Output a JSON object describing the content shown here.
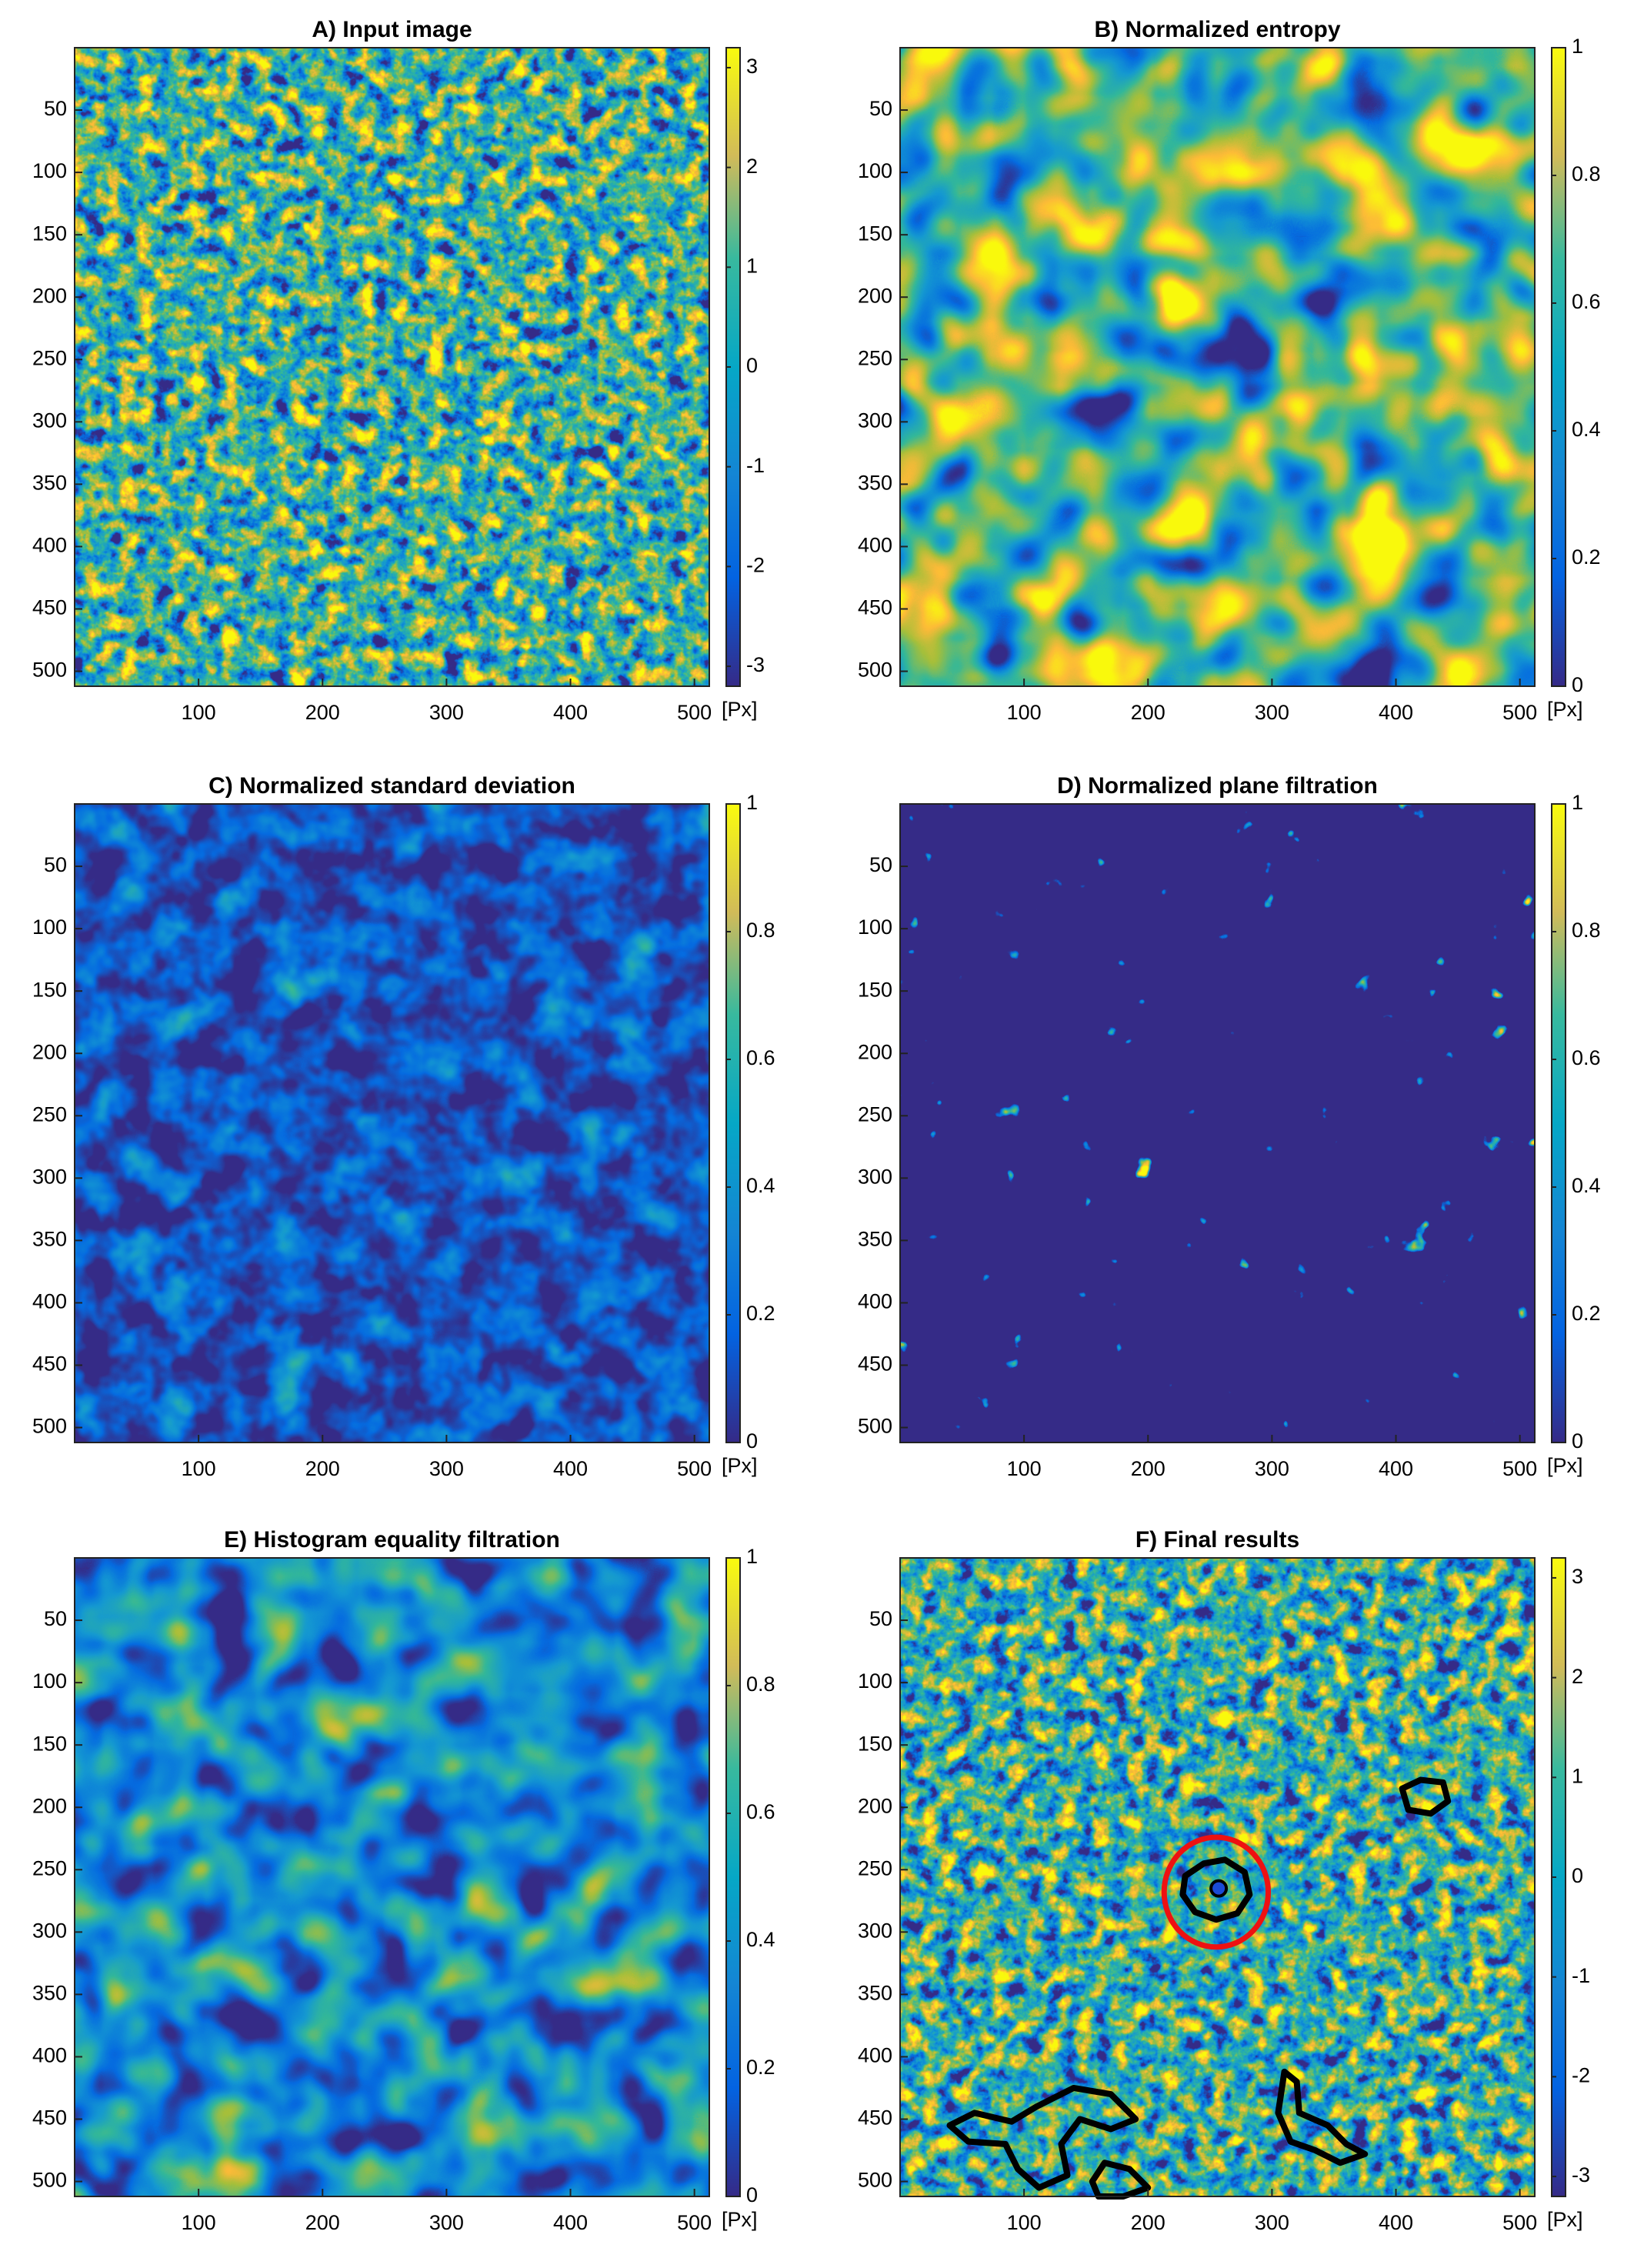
{
  "chart_data": [
    {
      "type": "heatmap",
      "title": "A) Input image",
      "xlim": [
        0,
        512
      ],
      "ylim": [
        0,
        512
      ],
      "xticks": [
        100,
        200,
        300,
        400,
        500
      ],
      "yticks": [
        50,
        100,
        150,
        200,
        250,
        300,
        350,
        400,
        450,
        500
      ],
      "clim": [
        -3.2,
        3.2
      ],
      "cticks": [
        -3,
        -2,
        -1,
        0,
        1,
        2,
        3
      ],
      "clabel": "[Px]"
    },
    {
      "type": "heatmap",
      "title": "B) Normalized entropy",
      "xlim": [
        0,
        512
      ],
      "ylim": [
        0,
        512
      ],
      "xticks": [
        100,
        200,
        300,
        400,
        500
      ],
      "yticks": [
        50,
        100,
        150,
        200,
        250,
        300,
        350,
        400,
        450,
        500
      ],
      "clim": [
        0,
        1
      ],
      "cticks": [
        0,
        0.2,
        0.4,
        0.6,
        0.8,
        1
      ],
      "clabel": "[Px]"
    },
    {
      "type": "heatmap",
      "title": "C) Normalized standard deviation",
      "xlim": [
        0,
        512
      ],
      "ylim": [
        0,
        512
      ],
      "xticks": [
        100,
        200,
        300,
        400,
        500
      ],
      "yticks": [
        50,
        100,
        150,
        200,
        250,
        300,
        350,
        400,
        450,
        500
      ],
      "clim": [
        0,
        1
      ],
      "cticks": [
        0,
        0.2,
        0.4,
        0.6,
        0.8,
        1
      ],
      "clabel": "[Px]"
    },
    {
      "type": "heatmap",
      "title": "D) Normalized plane filtration",
      "xlim": [
        0,
        512
      ],
      "ylim": [
        0,
        512
      ],
      "xticks": [
        100,
        200,
        300,
        400,
        500
      ],
      "yticks": [
        50,
        100,
        150,
        200,
        250,
        300,
        350,
        400,
        450,
        500
      ],
      "clim": [
        0,
        1
      ],
      "cticks": [
        0,
        0.2,
        0.4,
        0.6,
        0.8,
        1
      ],
      "clabel": "[Px]"
    },
    {
      "type": "heatmap",
      "title": "E) Histogram equality filtration",
      "xlim": [
        0,
        512
      ],
      "ylim": [
        0,
        512
      ],
      "xticks": [
        100,
        200,
        300,
        400,
        500
      ],
      "yticks": [
        50,
        100,
        150,
        200,
        250,
        300,
        350,
        400,
        450,
        500
      ],
      "clim": [
        0,
        1
      ],
      "cticks": [
        0,
        0.2,
        0.4,
        0.6,
        0.8,
        1
      ],
      "clabel": "[Px]"
    },
    {
      "type": "heatmap",
      "title": "F) Final results",
      "xlim": [
        0,
        512
      ],
      "ylim": [
        0,
        512
      ],
      "xticks": [
        100,
        200,
        300,
        400,
        500
      ],
      "yticks": [
        50,
        100,
        150,
        200,
        250,
        300,
        350,
        400,
        450,
        500
      ],
      "clim": [
        -3.2,
        3.2
      ],
      "cticks": [
        -3,
        -2,
        -1,
        0,
        1,
        2,
        3
      ],
      "clabel": "[Px]"
    }
  ]
}
